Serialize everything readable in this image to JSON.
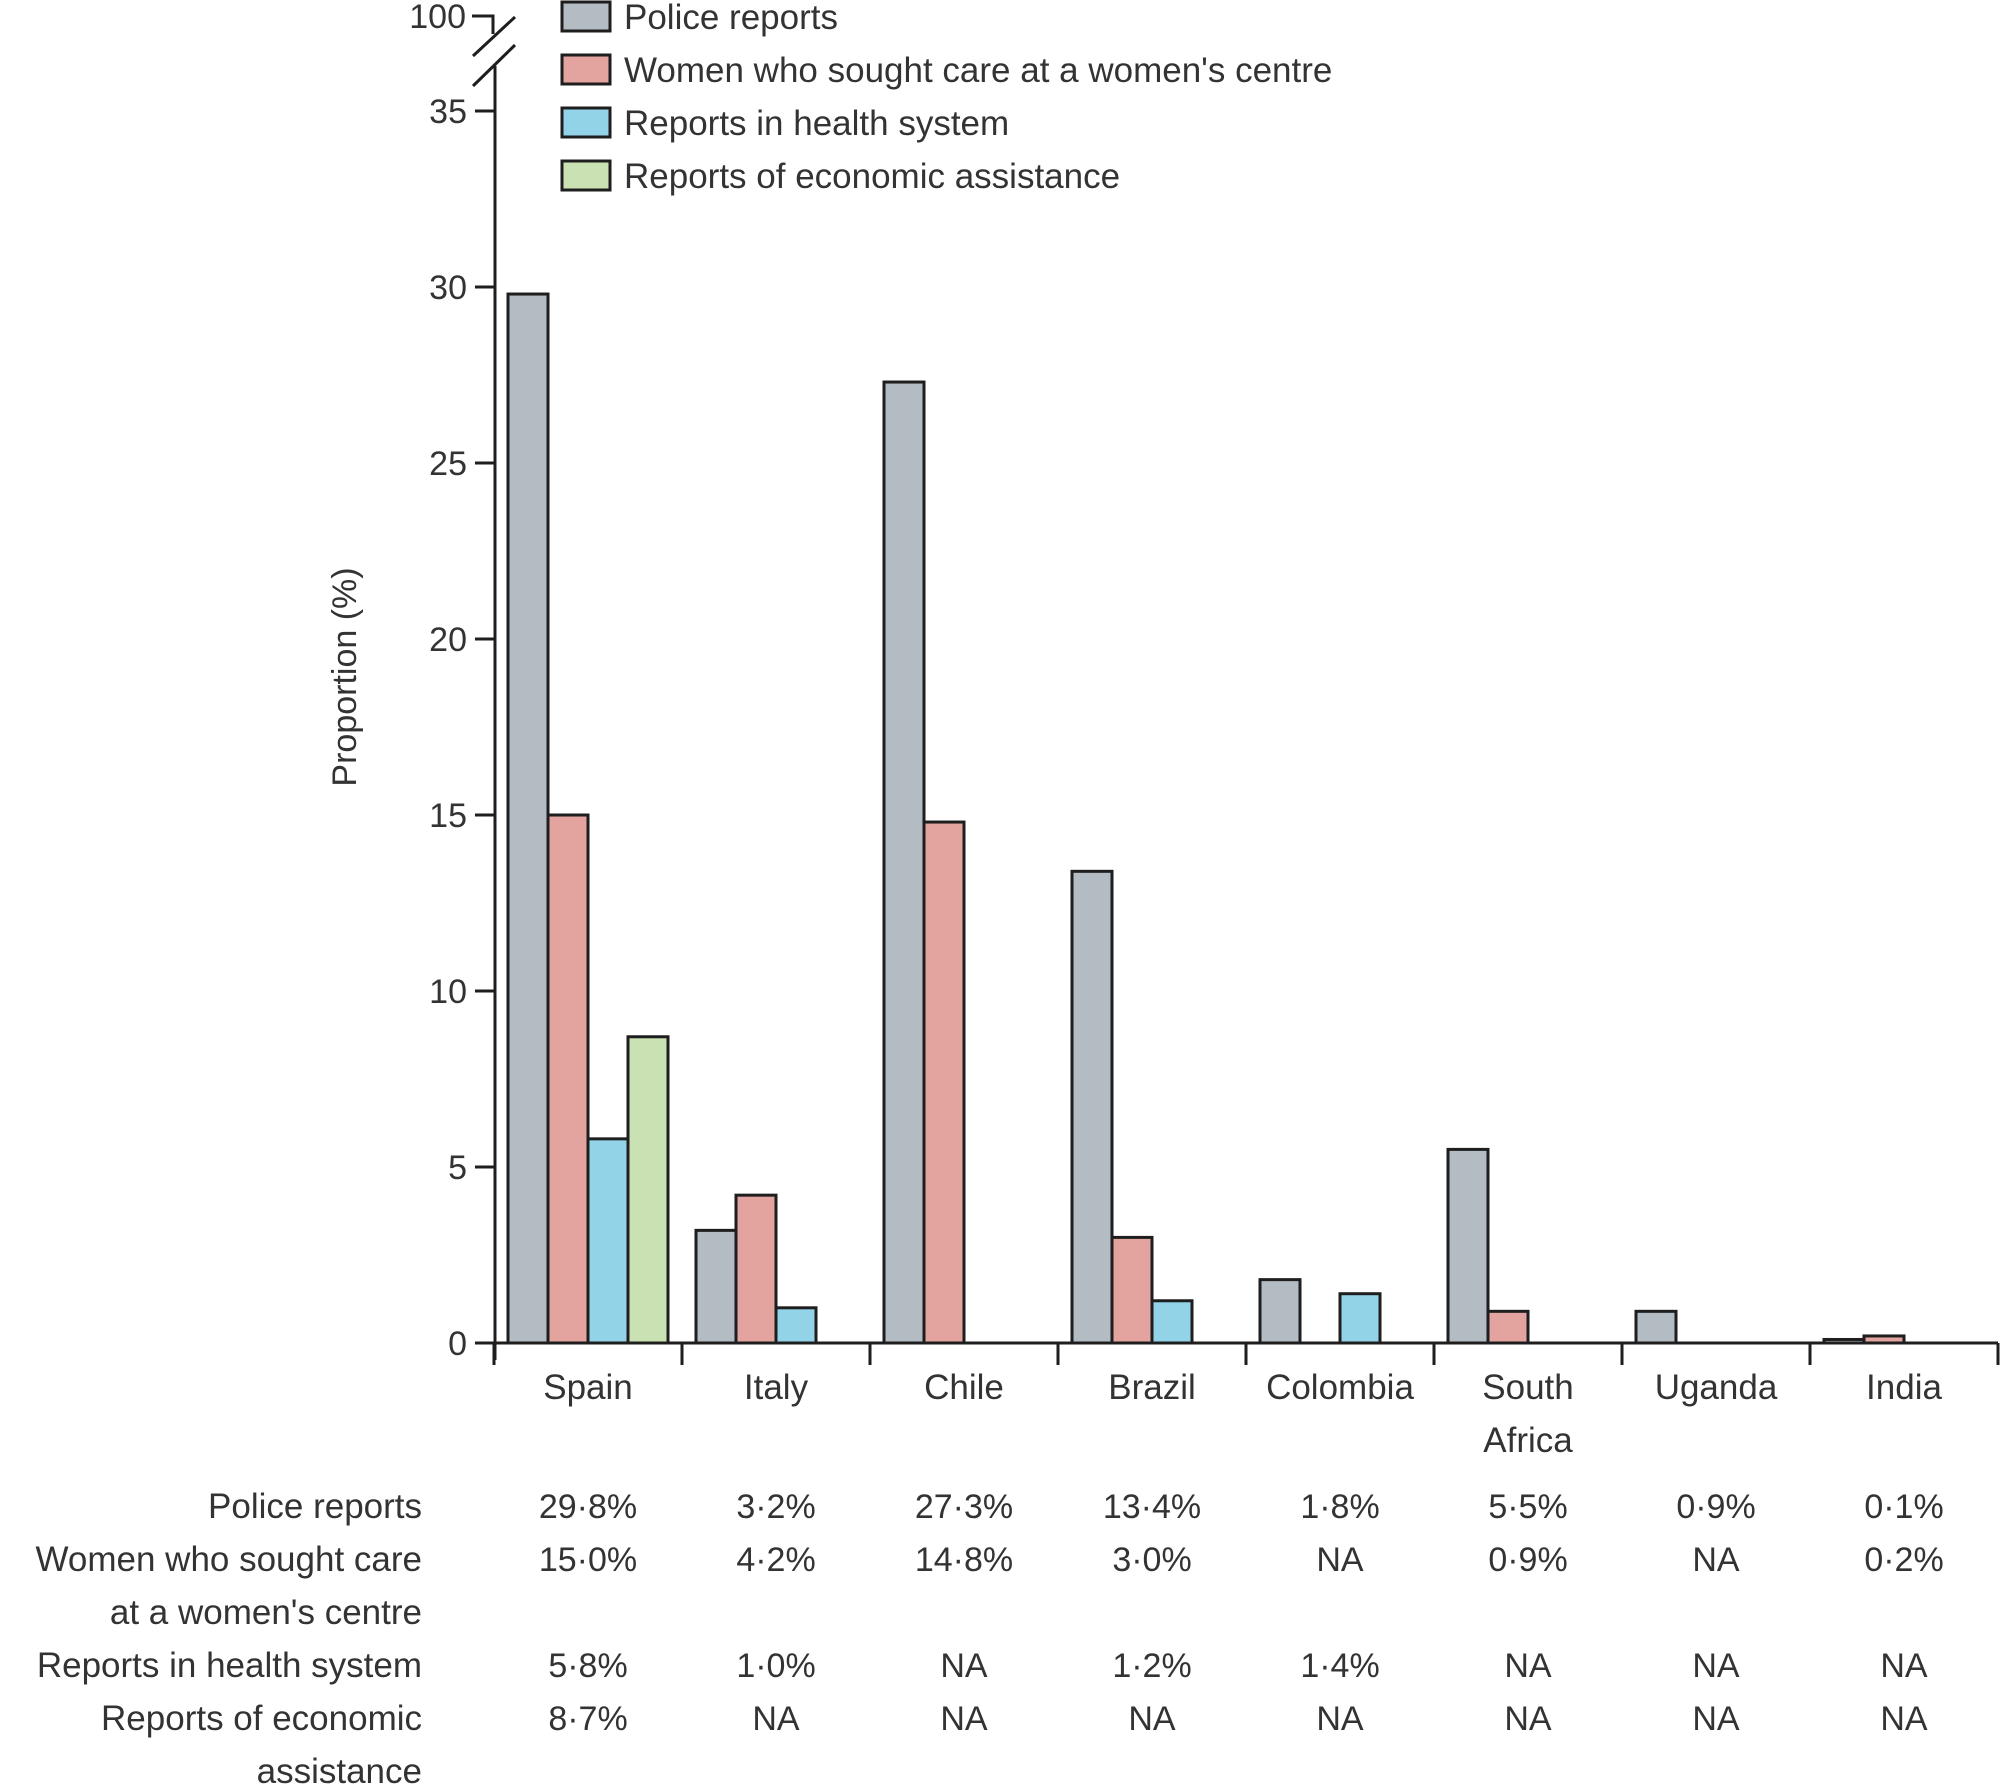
{
  "chart_data": {
    "type": "bar",
    "title": "",
    "xlabel": "",
    "ylabel": "Proportion (%)",
    "ylim": [
      0,
      35
    ],
    "y_break_top_label": "100",
    "yticks": [
      0,
      5,
      10,
      15,
      20,
      25,
      30,
      35
    ],
    "grid": false,
    "legend_position": "top-left",
    "categories": [
      "Spain",
      "Italy",
      "Chile",
      "Brazil",
      "Colombia",
      "South Africa",
      "Uganda",
      "India"
    ],
    "category_label_lines": [
      [
        "Spain"
      ],
      [
        "Italy"
      ],
      [
        "Chile"
      ],
      [
        "Brazil"
      ],
      [
        "Colombia"
      ],
      [
        "South",
        "Africa"
      ],
      [
        "Uganda"
      ],
      [
        "India"
      ]
    ],
    "series": [
      {
        "name": "Police reports",
        "color": "#b3bbc3",
        "values": [
          29.8,
          3.2,
          27.3,
          13.4,
          1.8,
          5.5,
          0.9,
          0.1
        ]
      },
      {
        "name": "Women who sought care at a women's centre",
        "color": "#e3a39e",
        "values": [
          15.0,
          4.2,
          14.8,
          3.0,
          null,
          0.9,
          null,
          0.2
        ]
      },
      {
        "name": "Reports in health system",
        "color": "#93d3e8",
        "values": [
          5.8,
          1.0,
          null,
          1.2,
          1.4,
          null,
          null,
          null
        ]
      },
      {
        "name": "Reports of economic assistance",
        "color": "#cae2b3",
        "values": [
          8.7,
          null,
          null,
          null,
          null,
          null,
          null,
          null
        ]
      }
    ],
    "table": {
      "rows": [
        {
          "label_lines": [
            "Police reports"
          ],
          "cells": [
            "29·8%",
            "3·2%",
            "27·3%",
            "13·4%",
            "1·8%",
            "5·5%",
            "0·9%",
            "0·1%"
          ]
        },
        {
          "label_lines": [
            "Women who sought care",
            "at a women's centre"
          ],
          "cells": [
            "15·0%",
            "4·2%",
            "14·8%",
            "3·0%",
            "NA",
            "0·9%",
            "NA",
            "0·2%"
          ]
        },
        {
          "label_lines": [
            "Reports in health system"
          ],
          "cells": [
            "5·8%",
            "1·0%",
            "NA",
            "1·2%",
            "1·4%",
            "NA",
            "NA",
            "NA"
          ]
        },
        {
          "label_lines": [
            "Reports of economic",
            "assistance"
          ],
          "cells": [
            "8·7%",
            "NA",
            "NA",
            "NA",
            "NA",
            "NA",
            "NA",
            "NA"
          ]
        }
      ]
    }
  }
}
